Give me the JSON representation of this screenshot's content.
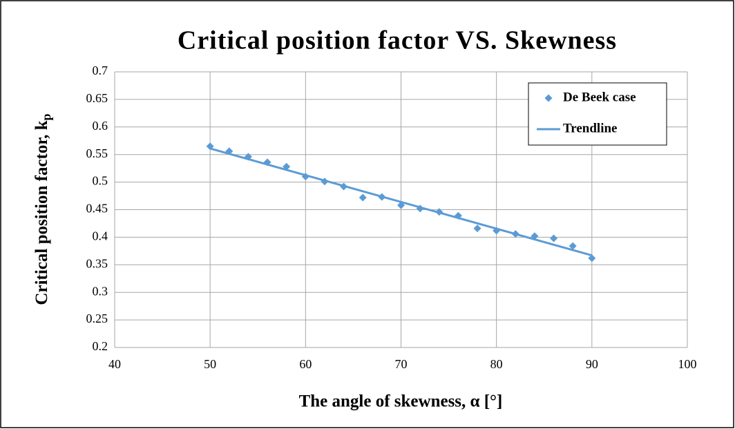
{
  "chart_data": {
    "type": "scatter",
    "title": "Critical position factor VS. Skewness",
    "xlabel": "The angle of skewness, α [°]",
    "ylabel": "Critical position factor, k",
    "ylabel_subscript": "p",
    "xlim": [
      40,
      100
    ],
    "xticks": [
      40,
      50,
      60,
      70,
      80,
      90,
      100
    ],
    "ylim": [
      0.2,
      0.7
    ],
    "yticks": [
      0.2,
      0.25,
      0.3,
      0.35,
      0.4,
      0.45,
      0.5,
      0.55,
      0.6,
      0.65,
      0.7
    ],
    "grid": true,
    "legend": "upper right",
    "series": [
      {
        "name": "De Beek case",
        "mode": "markers",
        "color": "#5b9bd5",
        "x": [
          50,
          52,
          54,
          56,
          58,
          60,
          62,
          64,
          66,
          68,
          70,
          72,
          74,
          76,
          78,
          80,
          82,
          84,
          86,
          88,
          90
        ],
        "values": [
          0.565,
          0.556,
          0.546,
          0.536,
          0.528,
          0.51,
          0.501,
          0.492,
          0.472,
          0.473,
          0.458,
          0.452,
          0.446,
          0.439,
          0.416,
          0.412,
          0.406,
          0.402,
          0.398,
          0.384,
          0.362
        ]
      },
      {
        "name": "Trendline",
        "mode": "line",
        "color": "#5b9bd5",
        "x": [
          50,
          90
        ],
        "values": [
          0.561,
          0.367
        ]
      }
    ]
  }
}
